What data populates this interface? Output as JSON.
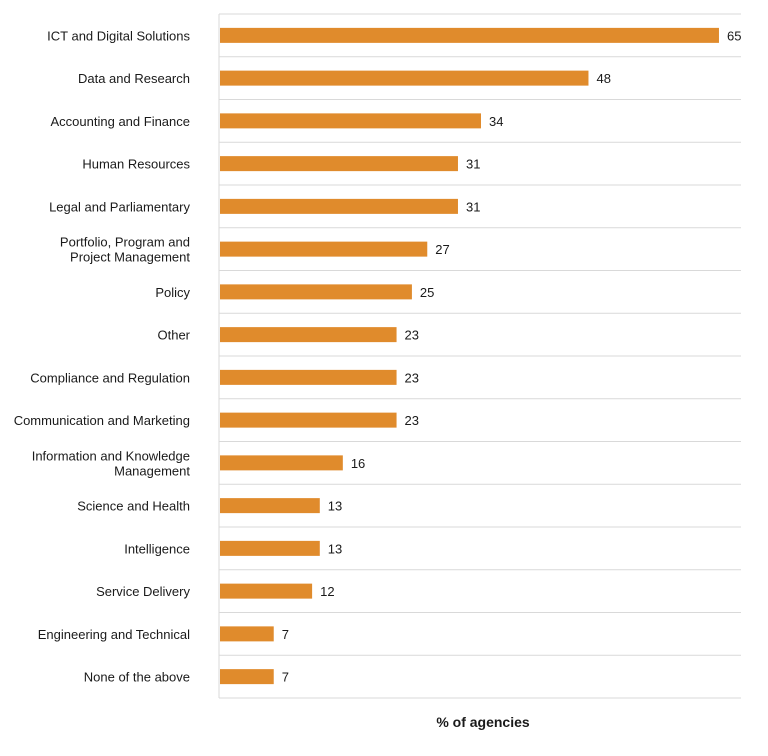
{
  "chart_data": {
    "type": "bar",
    "orientation": "horizontal",
    "categories": [
      "ICT and Digital Solutions",
      "Data and Research",
      "Accounting and Finance",
      "Human Resources",
      "Legal and Parliamentary",
      "Portfolio, Program and Project Management",
      "Policy",
      "Other",
      "Compliance and Regulation",
      "Communication and Marketing",
      "Information and Knowledge Management",
      "Science and Health",
      "Intelligence",
      "Service Delivery",
      "Engineering and Technical",
      "None of the above"
    ],
    "category_lines": [
      [
        "ICT and Digital Solutions"
      ],
      [
        "Data and Research"
      ],
      [
        "Accounting and Finance"
      ],
      [
        "Human Resources"
      ],
      [
        "Legal and Parliamentary"
      ],
      [
        "Portfolio, Program and",
        "Project Management"
      ],
      [
        "Policy"
      ],
      [
        "Other"
      ],
      [
        "Compliance and Regulation"
      ],
      [
        "Communication and Marketing"
      ],
      [
        "Information and Knowledge",
        "Management"
      ],
      [
        "Science and Health"
      ],
      [
        "Intelligence"
      ],
      [
        "Service Delivery"
      ],
      [
        "Engineering and Technical"
      ],
      [
        "None of the above"
      ]
    ],
    "values": [
      65,
      48,
      34,
      31,
      31,
      27,
      25,
      23,
      23,
      23,
      16,
      13,
      13,
      12,
      7,
      7
    ],
    "xlabel": "% of agencies",
    "ylabel": "",
    "title": "",
    "xlim": [
      0,
      68
    ],
    "bar_color": "#E08B2C",
    "grid": true,
    "data_labels": true
  }
}
